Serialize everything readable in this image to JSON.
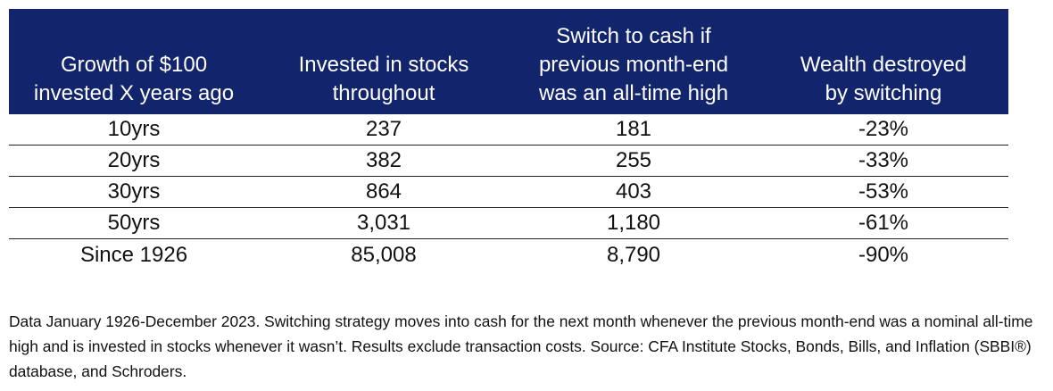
{
  "chart_data": {
    "type": "table",
    "columns": [
      [
        "Growth of $100",
        "invested X years ago"
      ],
      [
        "Invested in stocks",
        "throughout"
      ],
      [
        "Switch to cash if",
        "previous month-end",
        "was an all-time high"
      ],
      [
        "Wealth destroyed",
        "by switching"
      ]
    ],
    "rows": [
      [
        "10yrs",
        "237",
        "181",
        "-23%"
      ],
      [
        "20yrs",
        "382",
        "255",
        "-33%"
      ],
      [
        "30yrs",
        "864",
        "403",
        "-53%"
      ],
      [
        "50yrs",
        "3,031",
        "1,180",
        "-61%"
      ],
      [
        "Since 1926",
        "85,008",
        "8,790",
        "-90%"
      ]
    ],
    "header_color": "#12246b"
  },
  "note": "Data January 1926-December 2023. Switching strategy moves into cash for the next month whenever the previous month-end was a nominal all-time high and is invested in stocks whenever it wasn’t. Results exclude transaction costs. Source: CFA Institute Stocks, Bonds, Bills, and Inflation (SBBI®) database, and Schroders."
}
